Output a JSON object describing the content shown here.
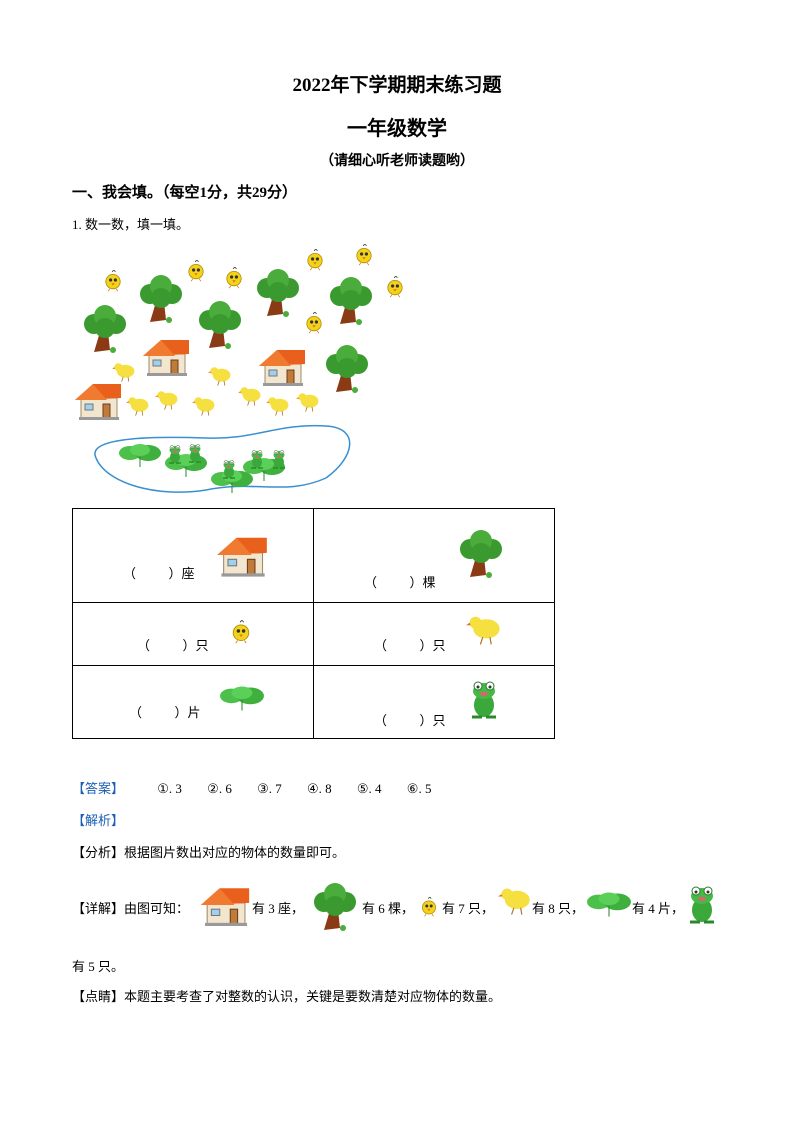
{
  "header": {
    "title": "2022年下学期期末练习题",
    "subtitle": "一年级数学",
    "note": "（请细心听老师读题哟）"
  },
  "section": {
    "heading": "一、我会填。（每空1分，共29分）",
    "question": "1. 数一数，填一填。"
  },
  "table": {
    "cells": [
      {
        "text": "（          ）座",
        "icon": "house-icon"
      },
      {
        "text": "（          ）棵",
        "icon": "tree-icon"
      },
      {
        "text": "（          ）只",
        "icon": "bird-icon"
      },
      {
        "text": "（          ）只",
        "icon": "chick-icon"
      },
      {
        "text": "（          ）片",
        "icon": "lily-pad-icon"
      },
      {
        "text": "（          ）只",
        "icon": "frog-icon"
      }
    ]
  },
  "answer": {
    "label": "【答案】",
    "items": [
      "①. 3",
      "②. 6",
      "③. 7",
      "④. 8",
      "⑤. 4",
      "⑥. 5"
    ]
  },
  "analysis": {
    "label": "【解析】",
    "fenxi_label": "【分析】",
    "fenxi": "根据图片数出对应的物体的数量即可。",
    "xiangjie_label": "【详解】",
    "xiangjie_intro": "由图可知：",
    "xiangjie_parts": [
      "有 3 座，",
      "有 6 棵，",
      "有 7 只，",
      "有 8 只，",
      "有 4 片，"
    ],
    "xiangjie_end": "有 5 只。",
    "dianjing_label": "【点睛】",
    "dianjing": "本题主要考查了对整数的认识，关键是要数清楚对应物体的数量。"
  },
  "colors": {
    "label_blue": "#1a5fb4",
    "pond_outline": "#3a8fd0"
  }
}
